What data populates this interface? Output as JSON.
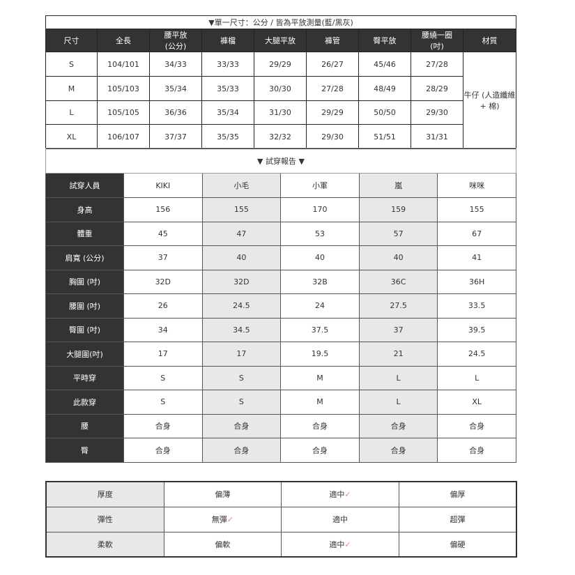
{
  "size_table": {
    "title": "▼單一尺寸：公分 / 皆為平放測量(藍/黑灰)",
    "headers": [
      "尺寸",
      "全長",
      "腰平放\n(公分)",
      "褲檔",
      "大腿平放",
      "褲管",
      "臀平放",
      "腰繞一圈\n(吋)",
      "材質"
    ],
    "rows": [
      [
        "S",
        "104/101",
        "34/33",
        "33/33",
        "29/29",
        "26/27",
        "45/46",
        "27/28"
      ],
      [
        "M",
        "105/103",
        "35/34",
        "35/33",
        "30/30",
        "27/28",
        "48/49",
        "28/29"
      ],
      [
        "L",
        "105/105",
        "36/36",
        "35/34",
        "31/30",
        "29/29",
        "50/50",
        "29/30"
      ],
      [
        "XL",
        "106/107",
        "37/37",
        "35/35",
        "32/32",
        "29/30",
        "51/51",
        "31/31"
      ]
    ],
    "material": "牛仔 (人造纖維 + 棉)"
  },
  "fit_report": {
    "title": "▼ 試穿報告 ▼",
    "header_label": "試穿人員",
    "people": [
      "KIKI",
      "小毛",
      "小軍",
      "嵐",
      "咪咪"
    ],
    "rows": [
      {
        "label": "身高",
        "values": [
          "156",
          "155",
          "170",
          "159",
          "155"
        ]
      },
      {
        "label": "體重",
        "values": [
          "45",
          "47",
          "53",
          "57",
          "67"
        ]
      },
      {
        "label": "肩寬 (公分)",
        "values": [
          "37",
          "40",
          "40",
          "40",
          "41"
        ]
      },
      {
        "label": "胸圍 (吋)",
        "values": [
          "32D",
          "32D",
          "32B",
          "36C",
          "36H"
        ]
      },
      {
        "label": "腰圍 (吋)",
        "values": [
          "26",
          "24.5",
          "24",
          "27.5",
          "33.5"
        ]
      },
      {
        "label": "臀圍 (吋)",
        "values": [
          "34",
          "34.5",
          "37.5",
          "37",
          "39.5"
        ]
      },
      {
        "label": "大腿圍(吋)",
        "values": [
          "17",
          "17",
          "19.5",
          "21",
          "24.5"
        ]
      },
      {
        "label": "平時穿",
        "values": [
          "S",
          "S",
          "M",
          "L",
          "L"
        ]
      },
      {
        "label": "此款穿",
        "values": [
          "S",
          "S",
          "M",
          "L",
          "XL"
        ]
      },
      {
        "label": "腰",
        "values": [
          "合身",
          "合身",
          "合身",
          "合身",
          "合身"
        ]
      },
      {
        "label": "臀",
        "values": [
          "合身",
          "合身",
          "合身",
          "合身",
          "合身"
        ]
      }
    ]
  },
  "fabric": {
    "check_mark": "✓",
    "check_color": "#f08080",
    "rows": [
      {
        "label": "厚度",
        "options": [
          "偏薄",
          "適中",
          "偏厚"
        ],
        "selected": 1
      },
      {
        "label": "彈性",
        "options": [
          "無彈",
          "適中",
          "超彈"
        ],
        "selected": 0
      },
      {
        "label": "柔軟",
        "options": [
          "偏軟",
          "適中",
          "偏硬"
        ],
        "selected": 1
      }
    ]
  }
}
